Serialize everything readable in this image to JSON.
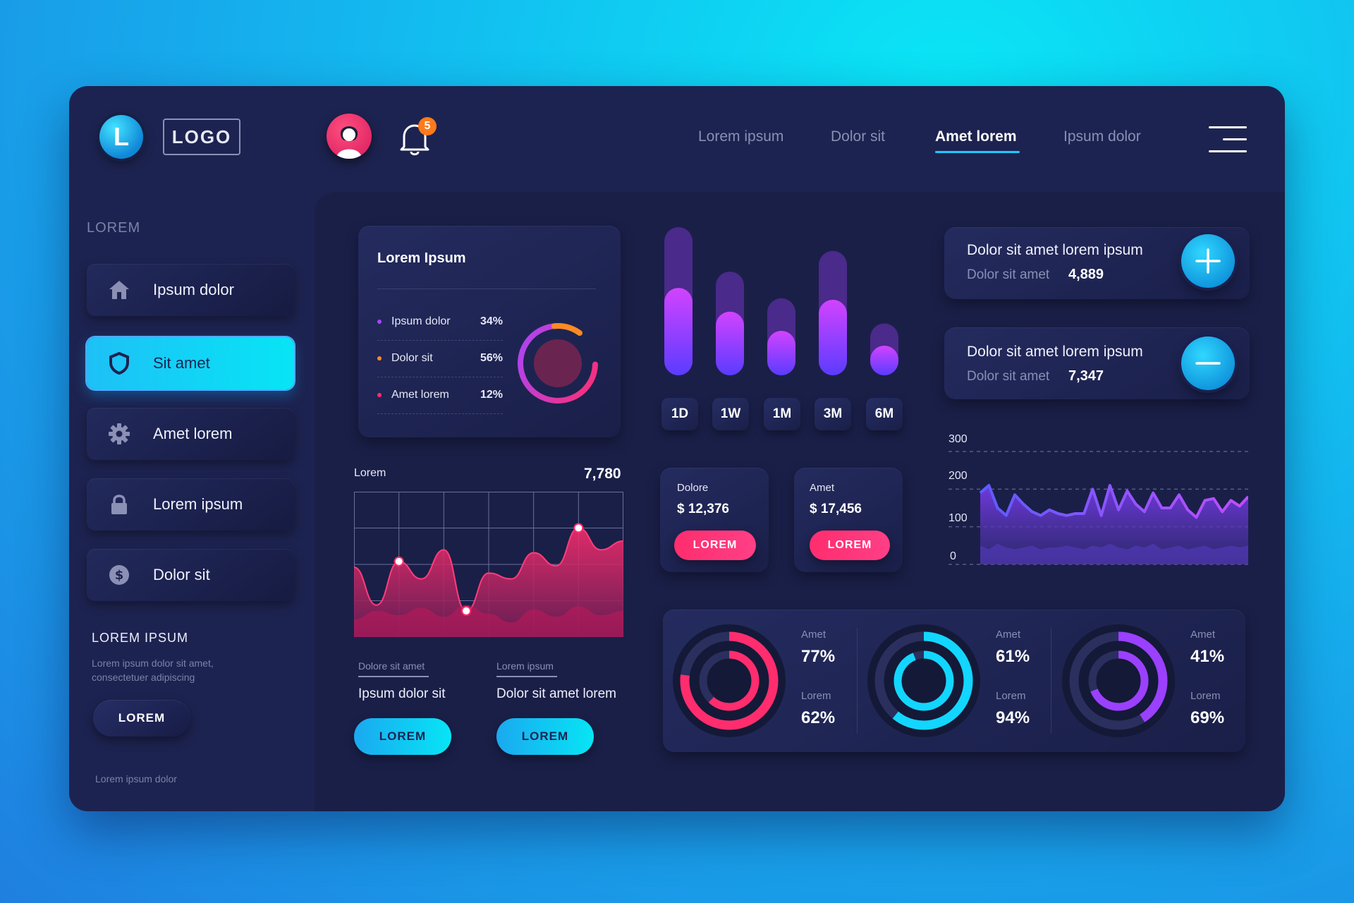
{
  "header": {
    "logo_letter": "L",
    "logo_text": "LOGO",
    "notification_count": "5",
    "nav": [
      "Lorem ipsum",
      "Dolor sit",
      "Amet lorem",
      "Ipsum dolor"
    ],
    "nav_active": "Amet lorem"
  },
  "sidebar": {
    "section_title": "LOREM",
    "items": [
      {
        "label": "Ipsum dolor",
        "icon": "home-icon"
      },
      {
        "label": "Sit amet",
        "icon": "shield-icon",
        "active": true
      },
      {
        "label": "Amet lorem",
        "icon": "gear-icon"
      },
      {
        "label": "Lorem ipsum",
        "icon": "lock-icon"
      },
      {
        "label": "Dolor sit",
        "icon": "dollar-icon"
      }
    ],
    "cta_title": "LOREM IPSUM",
    "cta_desc": "Lorem ipsum dolor sit amet, consectetuer adipiscing",
    "cta_button": "LOREM",
    "footer": "Lorem ipsum dolor"
  },
  "pie_card": {
    "title": "Lorem Ipsum",
    "items": [
      {
        "label": "Ipsum dolor",
        "value": "34%",
        "color": "#a546ff"
      },
      {
        "label": "Dolor sit",
        "value": "56%",
        "color": "#ff8a24"
      },
      {
        "label": "Amet lorem",
        "value": "12%",
        "color": "#ff2d6e"
      }
    ]
  },
  "area_card": {
    "label": "Lorem",
    "value": "7,780",
    "left": {
      "caption": "Dolore sit amet",
      "text": "Ipsum dolor sit",
      "button": "LOREM"
    },
    "right": {
      "caption": "Lorem ipsum",
      "text": "Dolor sit amet lorem",
      "button": "LOREM"
    }
  },
  "bar_chart": {
    "ranges": [
      "1D",
      "1W",
      "1M",
      "3M",
      "6M"
    ]
  },
  "money_cards": [
    {
      "label": "Dolore",
      "value": "$ 12,376",
      "button": "LOREM"
    },
    {
      "label": "Amet",
      "value": "$ 17,456",
      "button": "LOREM"
    }
  ],
  "stat_cards": [
    {
      "title": "Dolor sit amet lorem ipsum",
      "sub": "Dolor sit amet",
      "value": "4,889",
      "icon": "plus-icon"
    },
    {
      "title": "Dolor sit amet lorem ipsum",
      "sub": "Dolor sit amet",
      "value": "7,347",
      "icon": "minus-icon"
    }
  ],
  "line_chart": {
    "ticks": [
      "300",
      "200",
      "100",
      "0"
    ]
  },
  "donuts": [
    {
      "label1": "Amet",
      "value1": "77%",
      "label2": "Lorem",
      "value2": "62%",
      "color": "#ff2d6e"
    },
    {
      "label1": "Amet",
      "value1": "61%",
      "label2": "Lorem",
      "value2": "94%",
      "color": "#12d6ff"
    },
    {
      "label1": "Amet",
      "value1": "41%",
      "label2": "Lorem",
      "value2": "69%",
      "color": "#9b40ff"
    }
  ],
  "chart_data": [
    {
      "type": "bar",
      "categories": [
        "",
        "",
        "",
        "",
        ""
      ],
      "series": [
        {
          "values": [
            100,
            70,
            52,
            84,
            35
          ]
        },
        {
          "values": [
            59,
            43,
            30,
            51,
            20
          ]
        }
      ],
      "ylim": [
        0,
        100
      ]
    },
    {
      "type": "area",
      "x": [
        0,
        1,
        2,
        3,
        4,
        5,
        6,
        7,
        8,
        9,
        10,
        11,
        12
      ],
      "series": [
        {
          "values": [
            48,
            22,
            52,
            40,
            60,
            18,
            44,
            40,
            58,
            49,
            75,
            60,
            66
          ]
        },
        {
          "values": [
            12,
            18,
            15,
            20,
            14,
            22,
            16,
            10,
            19,
            14,
            21,
            15,
            18
          ]
        }
      ],
      "ylim": [
        0,
        100
      ]
    },
    {
      "type": "line",
      "x": [
        0,
        1,
        2,
        3,
        4,
        5,
        6,
        7,
        8,
        9,
        10,
        11,
        12,
        13,
        14,
        15,
        16,
        17,
        18,
        19,
        20,
        21,
        22,
        23,
        24,
        25,
        26,
        27,
        28,
        29,
        30,
        31
      ],
      "series": [
        {
          "values": [
            190,
            210,
            150,
            130,
            185,
            160,
            140,
            130,
            145,
            135,
            130,
            135,
            135,
            200,
            130,
            210,
            145,
            195,
            160,
            140,
            190,
            150,
            150,
            185,
            145,
            125,
            170,
            175,
            140,
            170,
            155,
            180
          ]
        },
        {
          "values": [
            30,
            20,
            35,
            25,
            20,
            25,
            30,
            20,
            25,
            25,
            30,
            25,
            20,
            30,
            25,
            35,
            25,
            20,
            30,
            25,
            35,
            20,
            25,
            30,
            20,
            25,
            30,
            20,
            25,
            30,
            25,
            30
          ]
        }
      ],
      "ylim": [
        0,
        300
      ]
    }
  ]
}
